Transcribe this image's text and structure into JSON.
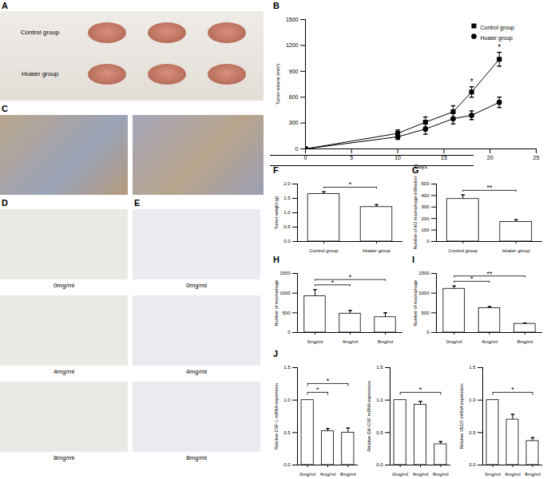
{
  "chart_data": [
    {
      "type": "line",
      "title": "B",
      "xlabel": "Days",
      "ylabel": "Tumor volume (mm³)",
      "x": [
        0,
        10,
        13,
        16,
        18,
        21
      ],
      "series": [
        {
          "name": "Control group",
          "color": "#000000",
          "marker": "square",
          "values": [
            0,
            180,
            310,
            430,
            660,
            1040
          ],
          "errors": [
            0,
            40,
            60,
            70,
            60,
            80
          ]
        },
        {
          "name": "Huaier group",
          "color": "#000000",
          "marker": "circle",
          "values": [
            0,
            140,
            230,
            350,
            390,
            540
          ],
          "errors": [
            0,
            30,
            60,
            60,
            50,
            60
          ]
        }
      ],
      "xlim": [
        0,
        25
      ],
      "xticks": [
        0,
        5,
        10,
        15,
        20,
        25
      ],
      "ylim": [
        0,
        1500
      ],
      "yticks": [
        0,
        300,
        600,
        900,
        1200,
        1500
      ],
      "legend": "top-right",
      "annotations": [
        {
          "x": 18,
          "text": "*"
        },
        {
          "x": 21,
          "text": "*"
        }
      ]
    },
    {
      "type": "bar",
      "title": "F",
      "ylabel": "Tumor weight (g)",
      "categories": [
        "Control group",
        "Huaier group"
      ],
      "values": [
        1.65,
        1.2
      ],
      "errors": [
        0.08,
        0.08
      ],
      "color": "#ffffff",
      "ylim": [
        0,
        2
      ],
      "yticks": [
        {
          "value": 0,
          "label": "0.0"
        },
        {
          "value": 0.5,
          "label": "0.5"
        },
        {
          "value": 1,
          "label": "1.0"
        },
        {
          "value": 1.5,
          "label": "1.5"
        },
        {
          "value": 2,
          "label": "2.0"
        }
      ],
      "annotations": [
        {
          "from": "Control group",
          "to": "Huaier group",
          "text": "*"
        }
      ]
    },
    {
      "type": "bar",
      "title": "G",
      "ylabel": "Number of M2 macrophage infiltration",
      "categories": [
        "Control group",
        "Huaier group"
      ],
      "values": [
        370,
        170
      ],
      "errors": [
        35,
        20
      ],
      "color": "#ffffff",
      "ylim": [
        0,
        500
      ],
      "yticks": [
        0,
        100,
        200,
        300,
        400,
        500
      ],
      "annotations": [
        {
          "from": "Control group",
          "to": "Huaier group",
          "text": "**"
        }
      ]
    },
    {
      "type": "bar",
      "title": "H",
      "ylabel": "Number of macrophage",
      "categories": [
        "0mg/ml",
        "4mg/ml",
        "8mg/ml"
      ],
      "values": [
        920,
        480,
        390
      ],
      "errors": [
        170,
        80,
        110
      ],
      "color": "#ffffff",
      "ylim": [
        0,
        1500
      ],
      "yticks": [
        0,
        500,
        1000,
        1500
      ],
      "annotations": [
        {
          "from": "0mg/ml",
          "to": "4mg/ml",
          "text": "*"
        },
        {
          "from": "0mg/ml",
          "to": "8mg/ml",
          "text": "*"
        }
      ]
    },
    {
      "type": "bar",
      "title": "I",
      "ylabel": "Number of macrophage",
      "categories": [
        "0mg/ml",
        "4mg/ml",
        "8mg/ml"
      ],
      "values": [
        1110,
        620,
        220
      ],
      "errors": [
        70,
        40,
        20
      ],
      "color": "#ffffff",
      "ylim": [
        0,
        1500
      ],
      "yticks": [
        0,
        500,
        1000,
        1500
      ],
      "annotations": [
        {
          "from": "0mg/ml",
          "to": "4mg/ml",
          "text": "*"
        },
        {
          "from": "0mg/ml",
          "to": "8mg/ml",
          "text": "**"
        }
      ]
    },
    {
      "type": "bar",
      "title": "J",
      "ylabel": "Relative CSF-1 mRNA expression",
      "categories": [
        "0mg/ml",
        "4mg/ml",
        "8mg/ml"
      ],
      "values": [
        1.0,
        0.52,
        0.5
      ],
      "errors": [
        0,
        0.04,
        0.07
      ],
      "color": "#ffffff",
      "ylim": [
        0,
        1.5
      ],
      "yticks": [
        {
          "value": 0,
          "label": "0.0"
        },
        {
          "value": 0.5,
          "label": "0.5"
        },
        {
          "value": 1,
          "label": "1.0"
        },
        {
          "value": 1.5,
          "label": "1.5"
        }
      ],
      "annotations": [
        {
          "from": "0mg/ml",
          "to": "4mg/ml",
          "text": "*"
        },
        {
          "from": "0mg/ml",
          "to": "8mg/ml",
          "text": "*"
        }
      ]
    },
    {
      "type": "bar",
      "ylabel": "Relative GM-CSF mRNA expression",
      "categories": [
        "0mg/ml",
        "4mg/ml",
        "8mg/ml"
      ],
      "values": [
        1.0,
        0.93,
        0.32
      ],
      "errors": [
        0,
        0.05,
        0.04
      ],
      "color": "#ffffff",
      "ylim": [
        0,
        1.5
      ],
      "yticks": [
        {
          "value": 0,
          "label": "0.0"
        },
        {
          "value": 0.5,
          "label": "0.5"
        },
        {
          "value": 1,
          "label": "1.0"
        },
        {
          "value": 1.5,
          "label": "1.5"
        }
      ],
      "annotations": [
        {
          "from": "0mg/ml",
          "to": "8mg/ml",
          "text": "*"
        }
      ]
    },
    {
      "type": "bar",
      "ylabel": "Relative VEGF mRNA expression",
      "categories": [
        "0mg/ml",
        "4mg/ml",
        "8mg/ml"
      ],
      "values": [
        1.0,
        0.7,
        0.37
      ],
      "errors": [
        0,
        0.08,
        0.05
      ],
      "color": "#ffffff",
      "ylim": [
        0,
        1.5
      ],
      "yticks": [
        {
          "value": 0,
          "label": "0.0"
        },
        {
          "value": 0.5,
          "label": "0.5"
        },
        {
          "value": 1,
          "label": "1.0"
        },
        {
          "value": 1.5,
          "label": "1.5"
        }
      ],
      "annotations": [
        {
          "from": "0mg/ml",
          "to": "8mg/ml",
          "text": "*"
        }
      ]
    }
  ],
  "images": [
    {
      "title": "A",
      "labels": [
        "Control group",
        "Huaier group"
      ]
    },
    {
      "title": "C"
    },
    {
      "title": "D",
      "labels": [
        "0mg/ml",
        "4mg/ml",
        "8mg/ml"
      ]
    },
    {
      "title": "E",
      "labels": [
        "0mg/ml",
        "4mg/ml",
        "8mg/ml"
      ]
    }
  ]
}
